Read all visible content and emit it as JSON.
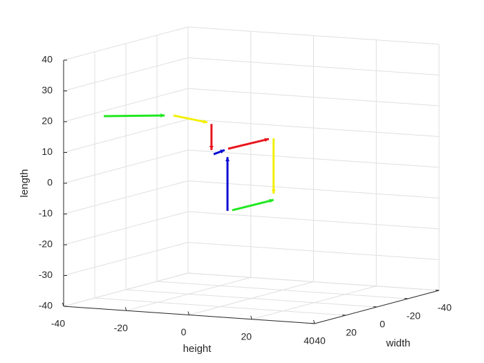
{
  "chart_data": {
    "type": "quiver3",
    "xlabel": "height",
    "ylabel": "width",
    "zlabel": "length",
    "xlim": [
      -40,
      40
    ],
    "xticks": [
      -40,
      -20,
      0,
      20,
      40
    ],
    "ylim": [
      -40,
      40
    ],
    "yticks": [
      -40,
      -20,
      0,
      20,
      40
    ],
    "zlim": [
      -40,
      40
    ],
    "zticks": [
      -40,
      -30,
      -20,
      -10,
      0,
      10,
      20,
      30,
      40
    ],
    "grid": true,
    "segments": [
      {
        "color": "#1fe81f",
        "x": [
          -37.1,
          -17.7
        ],
        "y": [
          20,
          20
        ],
        "z": [
          19.3,
          20.9
        ]
      },
      {
        "color": "#f2f000",
        "x": [
          -24.8,
          -14.0
        ],
        "y": [
          0,
          0
        ],
        "z": [
          17.7,
          16.2
        ]
      },
      {
        "color": "#e8141b",
        "x": [
          -12.7,
          -12.7
        ],
        "y": [
          0,
          0
        ],
        "z": [
          15.8,
          7.3
        ]
      },
      {
        "color": "#0a0ad2",
        "x": [
          -12.0,
          -8.5
        ],
        "y": [
          0,
          0
        ],
        "z": [
          6.0,
          7.6
        ]
      },
      {
        "color": "#e8141b",
        "x": [
          -7.4,
          5.6
        ],
        "y": [
          0,
          0
        ],
        "z": [
          8.1,
          12.2
        ]
      },
      {
        "color": "#f2f000",
        "x": [
          7.1,
          7.1
        ],
        "y": [
          0,
          0
        ],
        "z": [
          12.5,
          -5.5
        ]
      },
      {
        "color": "#1fe81f",
        "x": [
          -6.1,
          7.1
        ],
        "y": [
          0,
          0
        ],
        "z": [
          -11.8,
          -7.5
        ]
      },
      {
        "color": "#0a0ad2",
        "x": [
          -7.6,
          -7.6
        ],
        "y": [
          0,
          0
        ],
        "z": [
          -12.1,
          5.4
        ]
      }
    ]
  }
}
